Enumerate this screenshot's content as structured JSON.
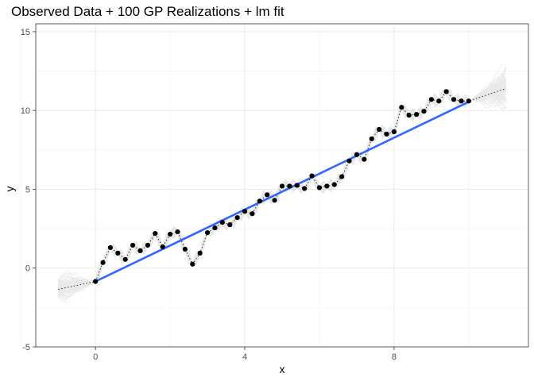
{
  "chart_data": {
    "type": "line",
    "title": "Observed Data + 100 GP Realizations + lm fit",
    "xlabel": "x",
    "ylabel": "y",
    "xlim": [
      -1.6,
      11.6
    ],
    "ylim": [
      -5,
      15.5
    ],
    "x_ticks": [
      0,
      4,
      8
    ],
    "x_tick_labels": [
      "0",
      "4",
      "8"
    ],
    "y_ticks": [
      -5,
      0,
      5,
      10,
      15
    ],
    "y_tick_labels": [
      "-5",
      "0",
      "5",
      "10",
      "15"
    ],
    "grid": true,
    "legend": "none",
    "observed": {
      "x": [
        0,
        0.2,
        0.4,
        0.6,
        0.8,
        1.0,
        1.2,
        1.4,
        1.6,
        1.8,
        2.0,
        2.2,
        2.4,
        2.6,
        2.8,
        3.0,
        3.2,
        3.4,
        3.6,
        3.8,
        4.0,
        4.2,
        4.4,
        4.6,
        4.8,
        5.0,
        5.2,
        5.4,
        5.6,
        5.8,
        6.0,
        6.2,
        6.4,
        6.6,
        6.8,
        7.0,
        7.2,
        7.4,
        7.6,
        7.8,
        8.0,
        8.2,
        8.4,
        8.6,
        8.8,
        9.0,
        9.2,
        9.4,
        9.6,
        9.8,
        10.0
      ],
      "y": [
        -0.85,
        0.35,
        1.3,
        0.95,
        0.55,
        1.45,
        1.1,
        1.45,
        2.2,
        1.35,
        2.15,
        2.3,
        1.2,
        0.25,
        0.95,
        2.25,
        2.55,
        2.9,
        2.75,
        3.2,
        3.6,
        3.45,
        4.25,
        4.65,
        4.3,
        5.2,
        5.2,
        5.25,
        5.05,
        5.85,
        5.1,
        5.2,
        5.3,
        5.8,
        6.8,
        7.2,
        6.9,
        8.2,
        8.8,
        8.5,
        8.65,
        10.2,
        9.7,
        9.75,
        9.95,
        10.7,
        10.6,
        11.2,
        10.7,
        10.6,
        10.6
      ]
    },
    "lm_fit": {
      "intercept": -0.85,
      "slope": 1.14,
      "x_range": [
        0,
        10
      ],
      "color": "#3366FF"
    },
    "extrapolation_mean": [
      {
        "x": [
          -1,
          0
        ],
        "y": [
          -1.35,
          -0.85
        ]
      },
      {
        "x": [
          10,
          11
        ],
        "y": [
          10.6,
          11.4
        ]
      }
    ],
    "realizations": {
      "count": 100,
      "color": "#bdbdbd"
    }
  }
}
